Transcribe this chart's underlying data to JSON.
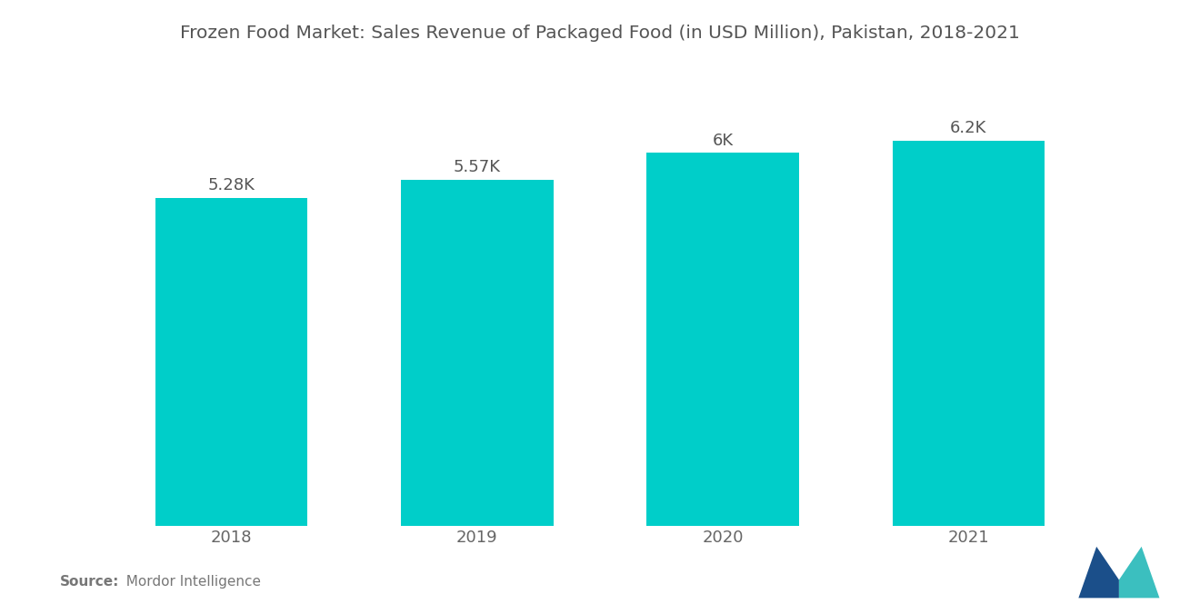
{
  "title": "Frozen Food Market: Sales Revenue of Packaged Food (in USD Million), Pakistan, 2018-2021",
  "categories": [
    "2018",
    "2019",
    "2020",
    "2021"
  ],
  "values": [
    5280,
    5570,
    6000,
    6200
  ],
  "labels": [
    "5.28K",
    "5.57K",
    "6K",
    "6.2K"
  ],
  "bar_color": "#00CEC9",
  "background_color": "#ffffff",
  "title_color": "#555555",
  "label_color": "#555555",
  "tick_color": "#666666",
  "source_bold": "Source:",
  "source_text": "  Mordor Intelligence",
  "title_fontsize": 14.5,
  "label_fontsize": 13,
  "tick_fontsize": 13,
  "source_fontsize": 11,
  "ylim": [
    0,
    7200
  ],
  "bar_width": 0.62
}
